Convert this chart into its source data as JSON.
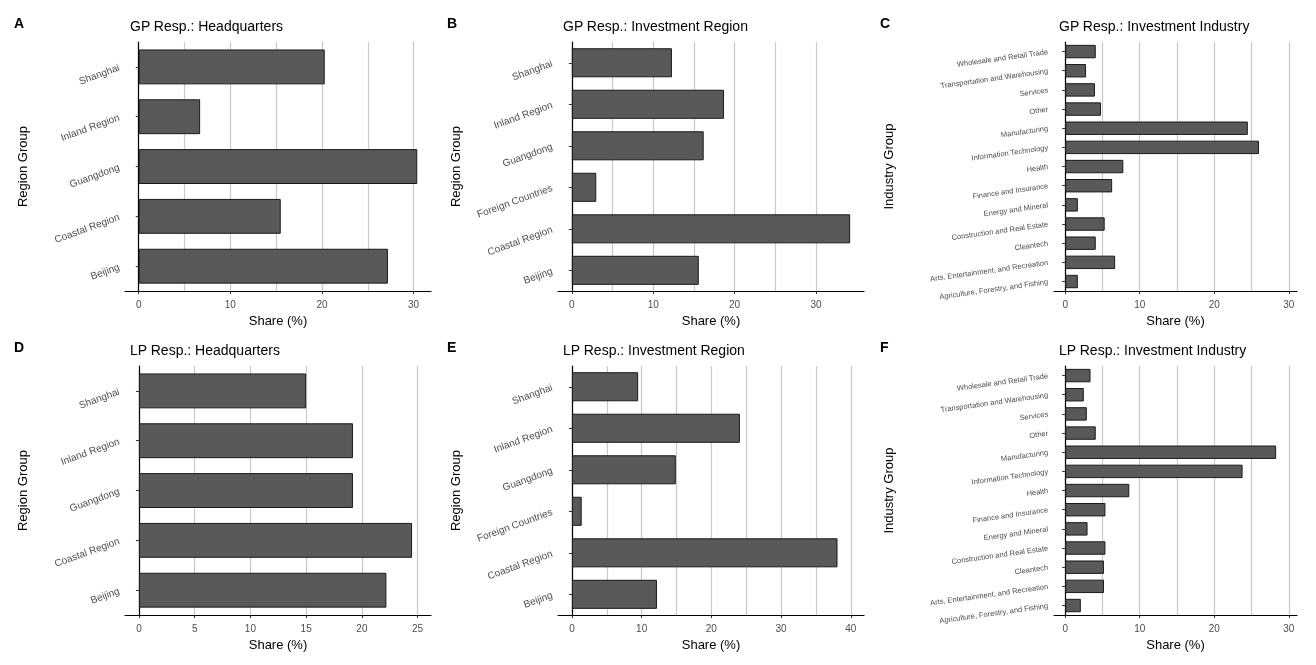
{
  "chart_data": [
    {
      "type": "bar",
      "orientation": "horizontal",
      "title": "GP Resp.: Headquarters",
      "annotations": [
        "A"
      ],
      "xlabel": "Share (%)",
      "ylabel": "Region Group",
      "categories": [
        "Shanghai",
        "Inland Region",
        "Guangdong",
        "Coastal Region",
        "Beijing"
      ],
      "values": [
        20.3,
        6.7,
        30.4,
        15.5,
        27.2
      ],
      "color": "#595959",
      "xlim": [
        -1.5,
        31.9
      ],
      "xticks": [
        0,
        {
          "value": 5,
          "label": null
        },
        10,
        {
          "value": 15,
          "label": null
        },
        20,
        {
          "value": 25,
          "label": null
        },
        30
      ],
      "grid": "x"
    },
    {
      "type": "bar",
      "orientation": "horizontal",
      "title": "GP Resp.: Investment Region",
      "annotations": [
        "B"
      ],
      "xlabel": "Share (%)",
      "ylabel": "Region Group",
      "categories": [
        "Shanghai",
        "Inland Region",
        "Guangdong",
        "Foreign Countries",
        "Coastal Region",
        "Beijing"
      ],
      "values": [
        12.3,
        18.7,
        16.2,
        3.0,
        34.2,
        15.6
      ],
      "color": "#595959",
      "xlim": [
        -1.7,
        35.9
      ],
      "xticks": [
        0,
        {
          "value": 5,
          "label": null
        },
        10,
        {
          "value": 15,
          "label": null
        },
        20,
        {
          "value": 25,
          "label": null
        },
        30
      ],
      "grid": "x"
    },
    {
      "type": "bar",
      "orientation": "horizontal",
      "title": "GP Resp.: Investment Industry",
      "annotations": [
        "C"
      ],
      "xlabel": "Share (%)",
      "ylabel": "Industry Group",
      "categories": [
        "Wholesale and Retail Trade",
        "Transportation and Warehousing",
        "Services",
        "Other",
        "Manufacturing",
        "Information Technology",
        "Health",
        "Finance and Insurance",
        "Energy and Mineral",
        "Construction and Real Estate",
        "Cleantech",
        "Arts, Entertainment, and Recreation",
        "Agriculture, Forestry, and Fishing"
      ],
      "values": [
        4.1,
        2.8,
        4.0,
        4.8,
        24.5,
        26.0,
        7.8,
        6.3,
        1.7,
        5.3,
        4.1,
        6.7,
        1.7
      ],
      "color": "#595959",
      "xlim": [
        -1.5,
        31.1
      ],
      "xticks": [
        0,
        {
          "value": 5,
          "label": null
        },
        10,
        {
          "value": 15,
          "label": null
        },
        20,
        {
          "value": 25,
          "label": null
        },
        30
      ],
      "grid": "x"
    },
    {
      "type": "bar",
      "orientation": "horizontal",
      "title": "LP Resp.: Headquarters",
      "annotations": [
        "D"
      ],
      "xlabel": "Share (%)",
      "ylabel": "Region Group",
      "categories": [
        "Shanghai",
        "Inland Region",
        "Guangdong",
        "Coastal Region",
        "Beijing"
      ],
      "values": [
        15.0,
        19.2,
        19.2,
        24.5,
        22.2
      ],
      "color": "#595959",
      "xlim": [
        -1.25,
        26.2
      ],
      "xticks": [
        0,
        5,
        10,
        15,
        20,
        25
      ],
      "grid": "x"
    },
    {
      "type": "bar",
      "orientation": "horizontal",
      "title": "LP Resp.: Investment Region",
      "annotations": [
        "E"
      ],
      "xlabel": "Share (%)",
      "ylabel": "Region Group",
      "categories": [
        "Shanghai",
        "Inland Region",
        "Guangdong",
        "Foreign Countries",
        "Coastal Region",
        "Beijing"
      ],
      "values": [
        9.5,
        24.1,
        14.9,
        1.4,
        38.1,
        12.2
      ],
      "color": "#595959",
      "xlim": [
        -2.0,
        41.9
      ],
      "xticks": [
        0,
        {
          "value": 5,
          "label": null
        },
        10,
        {
          "value": 15,
          "label": null
        },
        20,
        {
          "value": 25,
          "label": null
        },
        30,
        {
          "value": 35,
          "label": null
        },
        40
      ],
      "grid": "x"
    },
    {
      "type": "bar",
      "orientation": "horizontal",
      "title": "LP Resp.: Investment Industry",
      "annotations": [
        "F"
      ],
      "xlabel": "Share (%)",
      "ylabel": "Industry Group",
      "categories": [
        "Wholesale and Retail Trade",
        "Transportation and Warehousing",
        "Services",
        "Other",
        "Manufacturing",
        "Information Technology",
        "Health",
        "Finance and Insurance",
        "Energy and Mineral",
        "Construction and Real Estate",
        "Cleantech",
        "Arts, Entertainment, and Recreation",
        "Agriculture, Forestry, and Fishing"
      ],
      "values": [
        3.4,
        2.5,
        2.9,
        4.1,
        28.3,
        23.8,
        8.6,
        5.4,
        3.0,
        5.4,
        5.2,
        5.2,
        2.1
      ],
      "color": "#595959",
      "xlim": [
        -1.5,
        31.1
      ],
      "xticks": [
        0,
        {
          "value": 5,
          "label": null
        },
        10,
        {
          "value": 15,
          "label": null
        },
        20,
        {
          "value": 25,
          "label": null
        },
        30
      ],
      "grid": "x"
    }
  ]
}
